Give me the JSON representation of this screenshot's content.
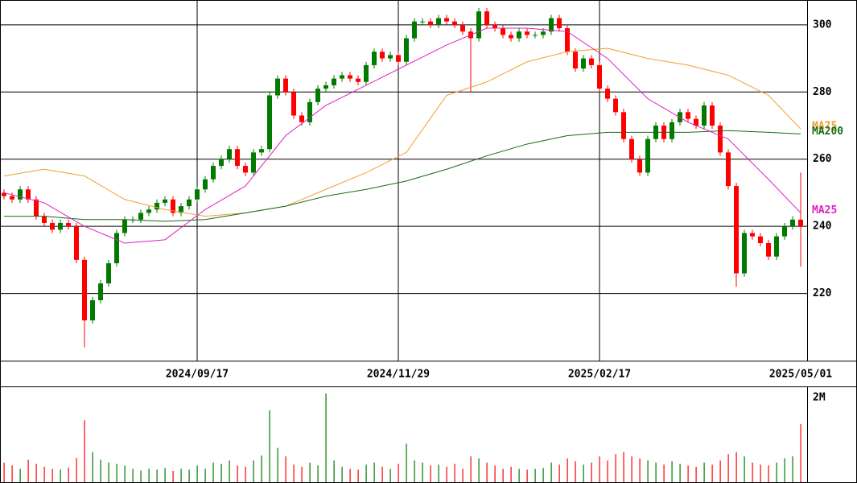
{
  "chart_data": [
    {
      "type": "candlestick",
      "categories": [
        null,
        null,
        null,
        null,
        null,
        null,
        null,
        null,
        null,
        null,
        null,
        null,
        null,
        null,
        null,
        null,
        null,
        null,
        null,
        null,
        null,
        null,
        null,
        null,
        "2024/09/17",
        null,
        null,
        null,
        null,
        null,
        null,
        null,
        null,
        null,
        null,
        null,
        null,
        null,
        null,
        null,
        null,
        null,
        null,
        null,
        null,
        null,
        null,
        null,
        null,
        "2024/11/29",
        null,
        null,
        null,
        null,
        null,
        null,
        null,
        null,
        null,
        null,
        null,
        null,
        null,
        null,
        null,
        null,
        null,
        null,
        null,
        null,
        null,
        null,
        null,
        null,
        "2025/02/17",
        null,
        null,
        null,
        null,
        null,
        null,
        null,
        null,
        null,
        null,
        null,
        null,
        null,
        null,
        null,
        null,
        null,
        null,
        null,
        null,
        null,
        null,
        null,
        null,
        "2025/05/01"
      ],
      "open": [
        250,
        249,
        248,
        251,
        248,
        243,
        241,
        239,
        241,
        240,
        230,
        212,
        218,
        223,
        229,
        238,
        242,
        242,
        244,
        245,
        247,
        248,
        244,
        246,
        248,
        251,
        254,
        258,
        260,
        263,
        258,
        256,
        262,
        263,
        279,
        284,
        280,
        273,
        271,
        277,
        281,
        282,
        284,
        285,
        284,
        283,
        288,
        292,
        290,
        291,
        289,
        296,
        301,
        301,
        300,
        302,
        301,
        300,
        298,
        296,
        304,
        300,
        299,
        297,
        296,
        298,
        297,
        297,
        298,
        302,
        299,
        292,
        287,
        290,
        288,
        281,
        278,
        274,
        266,
        260,
        256,
        266,
        270,
        266,
        271,
        274,
        272,
        270,
        276,
        270,
        262,
        252,
        226,
        238,
        237,
        235,
        231,
        237,
        240,
        242
      ],
      "high": [
        251,
        250,
        252,
        252,
        249,
        244,
        242,
        242,
        242,
        241,
        231,
        219,
        224,
        230,
        239,
        243,
        243,
        245,
        246,
        248,
        249,
        249,
        247,
        249,
        252,
        255,
        259,
        261,
        264,
        264,
        259,
        263,
        264,
        280,
        285,
        285,
        281,
        274,
        278,
        282,
        283,
        285,
        286,
        286,
        285,
        289,
        293,
        293,
        292,
        292,
        297,
        302,
        302,
        302,
        303,
        303,
        302,
        301,
        299,
        305,
        305,
        301,
        300,
        298,
        299,
        299,
        298,
        299,
        303,
        303,
        300,
        293,
        291,
        291,
        289,
        282,
        279,
        275,
        267,
        261,
        267,
        271,
        271,
        272,
        275,
        275,
        273,
        277,
        277,
        271,
        263,
        253,
        239,
        239,
        238,
        236,
        238,
        241,
        243,
        256
      ],
      "low": [
        248,
        247,
        247,
        247,
        242,
        240,
        238,
        238,
        239,
        229,
        204,
        211,
        217,
        222,
        228,
        237,
        241,
        241,
        243,
        244,
        246,
        243,
        243,
        245,
        247,
        250,
        253,
        257,
        259,
        257,
        255,
        255,
        261,
        262,
        278,
        279,
        272,
        270,
        270,
        276,
        280,
        281,
        283,
        283,
        282,
        282,
        287,
        289,
        289,
        288,
        288,
        295,
        300,
        299,
        299,
        300,
        299,
        297,
        280,
        295,
        299,
        298,
        296,
        295,
        295,
        296,
        296,
        296,
        297,
        298,
        291,
        286,
        286,
        287,
        280,
        277,
        273,
        265,
        259,
        255,
        255,
        265,
        265,
        265,
        270,
        271,
        269,
        269,
        269,
        261,
        251,
        222,
        225,
        236,
        234,
        230,
        230,
        236,
        239,
        228
      ],
      "close": [
        249,
        248,
        251,
        248,
        243,
        241,
        239,
        241,
        240,
        230,
        212,
        218,
        223,
        229,
        238,
        242,
        242,
        244,
        245,
        247,
        248,
        244,
        246,
        248,
        251,
        254,
        258,
        260,
        263,
        258,
        256,
        262,
        263,
        279,
        284,
        280,
        273,
        271,
        277,
        281,
        282,
        284,
        285,
        284,
        283,
        288,
        292,
        290,
        291,
        289,
        296,
        301,
        301,
        300,
        302,
        301,
        300,
        298,
        296,
        304,
        300,
        299,
        297,
        296,
        298,
        297,
        297,
        298,
        302,
        299,
        292,
        287,
        290,
        288,
        281,
        278,
        274,
        266,
        260,
        256,
        266,
        270,
        266,
        271,
        274,
        272,
        270,
        276,
        270,
        262,
        252,
        226,
        238,
        237,
        235,
        231,
        237,
        240,
        242,
        240
      ],
      "up_color": "#007a00",
      "down_color": "#ff0000",
      "series": [
        {
          "name": "MA75",
          "color": "#f0a030",
          "x": [
            0,
            5,
            10,
            15,
            20,
            25,
            30,
            35,
            40,
            45,
            50,
            55,
            60,
            65,
            70,
            75,
            80,
            85,
            90,
            95,
            99
          ],
          "values": [
            255,
            257,
            255,
            248,
            245,
            243,
            244,
            246,
            251,
            256,
            262,
            279,
            283,
            289,
            292,
            293,
            290,
            288,
            285,
            279,
            269
          ]
        },
        {
          "name": "MA200",
          "color": "#1a6a1a",
          "x": [
            0,
            5,
            10,
            15,
            20,
            25,
            30,
            35,
            40,
            45,
            50,
            55,
            60,
            65,
            70,
            75,
            80,
            85,
            90,
            95,
            99
          ],
          "values": [
            243,
            243,
            242,
            242,
            241.5,
            242,
            244,
            246,
            249,
            251,
            253.5,
            257,
            261,
            264.5,
            267,
            268,
            268,
            268,
            268.5,
            268,
            267.5
          ]
        },
        {
          "name": "MA25",
          "color": "#e020c0",
          "x": [
            0,
            5,
            10,
            15,
            20,
            25,
            30,
            35,
            40,
            45,
            50,
            55,
            60,
            65,
            70,
            75,
            80,
            85,
            90,
            95,
            99
          ],
          "values": [
            250,
            247,
            240,
            235,
            236,
            245,
            252,
            267,
            276,
            282,
            288,
            294,
            299,
            299,
            298,
            290,
            278,
            271,
            266,
            254,
            244
          ]
        }
      ],
      "ylim": [
        200,
        307.4
      ],
      "yticks": [
        220,
        240,
        260,
        280,
        300
      ],
      "grid": true
    },
    {
      "type": "bar",
      "values": [
        450000,
        380000,
        300000,
        520000,
        420000,
        350000,
        300000,
        280000,
        330000,
        560000,
        1460000,
        700000,
        520000,
        450000,
        420000,
        380000,
        300000,
        260000,
        300000,
        280000,
        320000,
        250000,
        300000,
        280000,
        380000,
        300000,
        450000,
        420000,
        500000,
        380000,
        350000,
        500000,
        620000,
        1700000,
        800000,
        600000,
        400000,
        350000,
        450000,
        380000,
        2100000,
        500000,
        350000,
        300000,
        280000,
        400000,
        450000,
        350000,
        300000,
        420000,
        900000,
        500000,
        450000,
        380000,
        400000,
        350000,
        420000,
        300000,
        600000,
        550000,
        450000,
        380000,
        300000,
        350000,
        300000,
        280000,
        300000,
        320000,
        450000,
        400000,
        550000,
        480000,
        400000,
        450000,
        600000,
        500000,
        650000,
        700000,
        600000,
        550000,
        500000,
        450000,
        400000,
        480000,
        420000,
        380000,
        350000,
        450000,
        400000,
        500000,
        650000,
        700000,
        600000,
        450000,
        400000,
        380000,
        450000,
        550000,
        600000,
        1370000
      ],
      "ylim": [
        0,
        2270000
      ],
      "yticks": [
        {
          "value": 2000000,
          "label": "2M"
        }
      ],
      "grid": false
    }
  ]
}
